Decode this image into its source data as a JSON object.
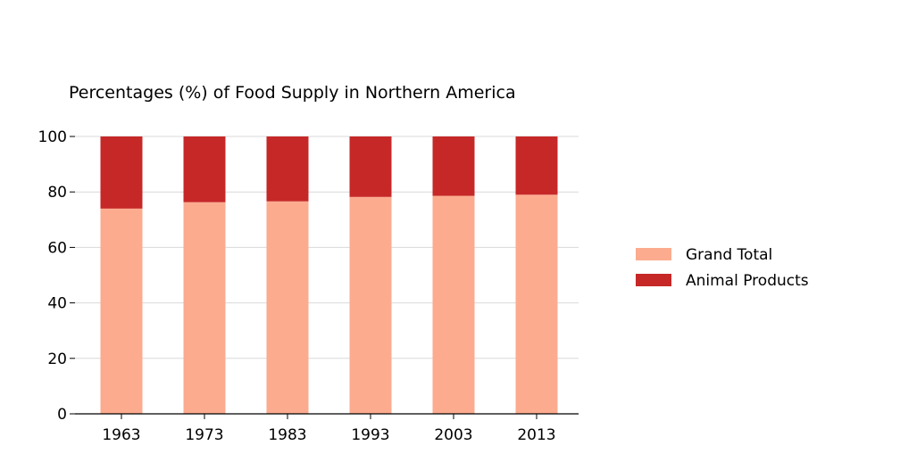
{
  "chart_data": {
    "type": "bar",
    "stacked": true,
    "title": "Percentages (%) of Food Supply in Northern America",
    "xlabel": "",
    "ylabel": "",
    "categories": [
      "1963",
      "1973",
      "1983",
      "1993",
      "2003",
      "2013"
    ],
    "series": [
      {
        "name": "Grand Total",
        "color": "#fcab8f",
        "values": [
          74,
          76.3,
          76.6,
          78.2,
          78.6,
          79
        ]
      },
      {
        "name": "Animal Products",
        "color": "#c62828",
        "values": [
          26,
          23.7,
          23.4,
          21.8,
          21.4,
          21
        ]
      }
    ],
    "ylim": [
      0,
      100
    ],
    "yticks": [
      0,
      20,
      40,
      60,
      80,
      100
    ],
    "grid": "horizontal",
    "legend": "right"
  }
}
